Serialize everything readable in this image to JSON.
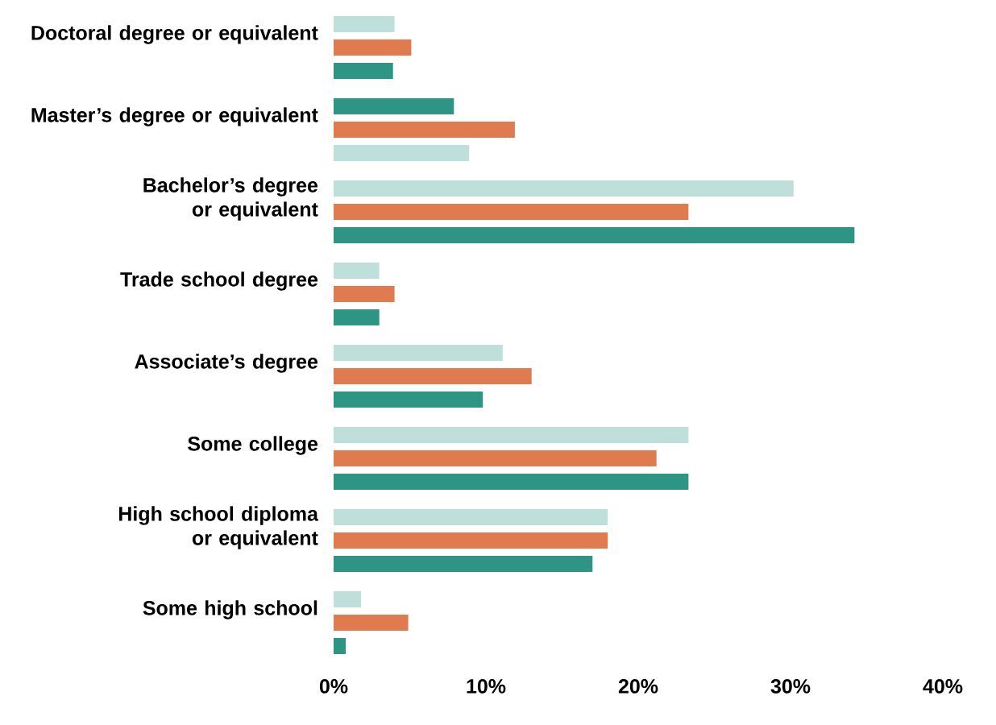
{
  "chart_data": {
    "type": "bar",
    "orientation": "horizontal",
    "categories": [
      "Doctoral degree or equivalent",
      "Master’s degree or equivalent",
      "Bachelor’s degree or equivalent",
      "Trade school degree",
      "Associate’s degree",
      "Some college",
      "High school diploma or equivalent",
      "Some high school"
    ],
    "series": [
      {
        "color": "#bfdfda",
        "colors": [
          "#bfdfda",
          "#2e9484",
          "#bfdfda",
          "#bfdfda",
          "#bfdfda",
          "#bfdfda",
          "#bfdfda",
          "#bfdfda"
        ],
        "values": [
          4.0,
          7.9,
          30.2,
          3.0,
          11.1,
          23.3,
          18.0,
          1.8
        ]
      },
      {
        "color": "#e07b4f",
        "values": [
          5.1,
          11.9,
          23.3,
          4.0,
          13.0,
          21.2,
          18.0,
          4.9
        ]
      },
      {
        "color": "#2e9484",
        "colors": [
          "#2e9484",
          "#bfdfda",
          "#2e9484",
          "#2e9484",
          "#2e9484",
          "#2e9484",
          "#2e9484",
          "#2e9484"
        ],
        "values": [
          3.9,
          8.9,
          34.2,
          3.0,
          9.8,
          23.3,
          17.0,
          0.8
        ]
      }
    ],
    "xlim": [
      0,
      40
    ],
    "xticks": [
      {
        "value": 0,
        "label": "0%"
      },
      {
        "value": 10,
        "label": "10%"
      },
      {
        "value": 20,
        "label": "20%"
      },
      {
        "value": 30,
        "label": "30%"
      },
      {
        "value": 40,
        "label": "40%"
      }
    ],
    "grid": false
  }
}
